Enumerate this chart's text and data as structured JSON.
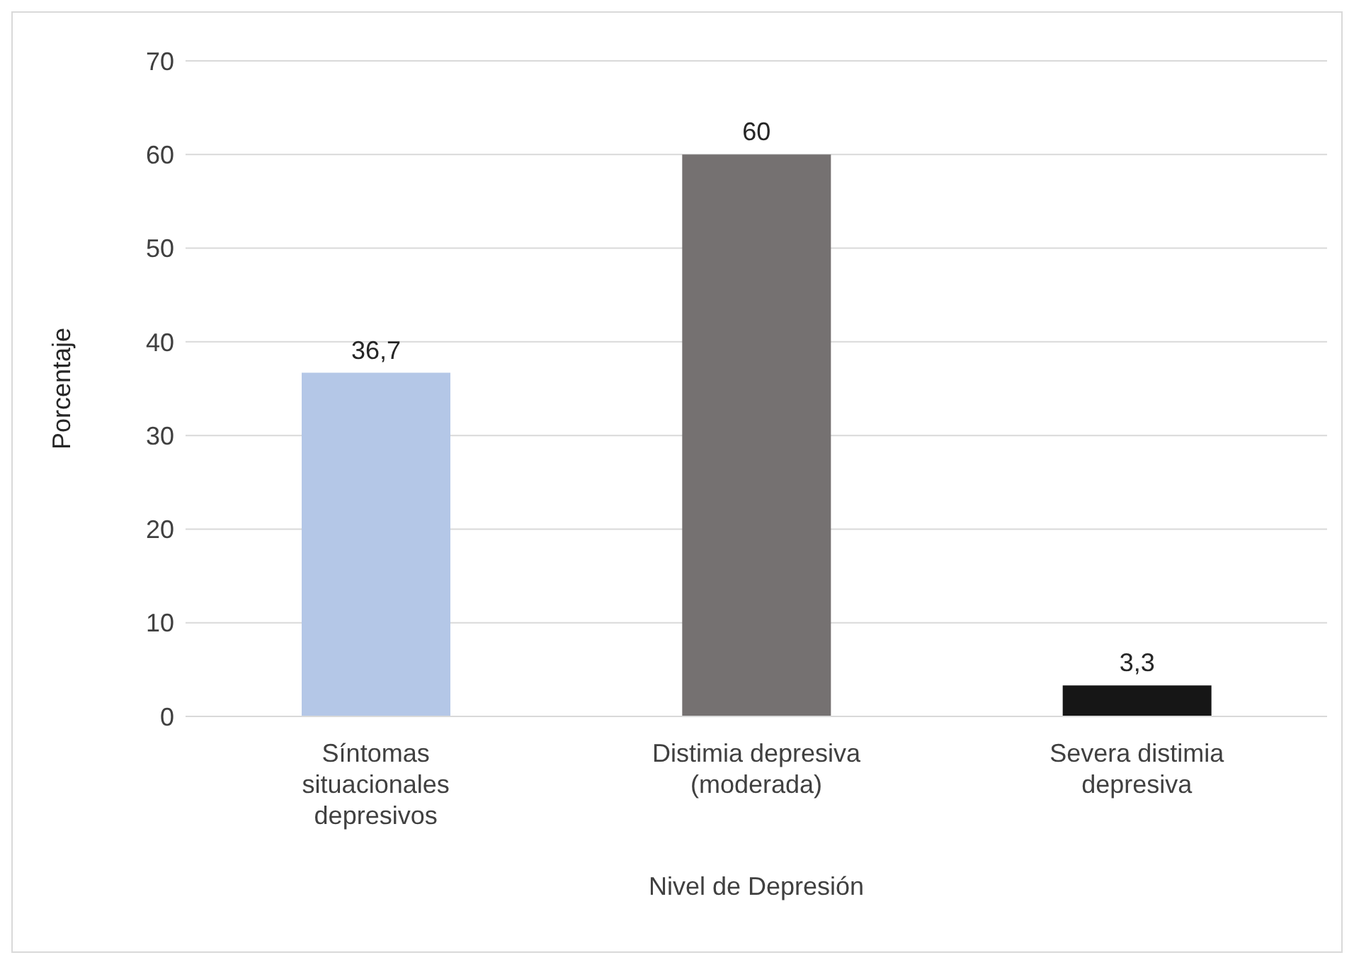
{
  "chart_data": {
    "type": "bar",
    "xlabel": "Nivel de Depresión",
    "ylabel": "Porcentaje",
    "categories": [
      "Síntomas situacionales depresivos",
      "Distimia depresiva (moderada)",
      "Severa distimia depresiva"
    ],
    "values": [
      36.7,
      60,
      3.3
    ],
    "colors": [
      "#b4c7e7",
      "#757171",
      "#161616"
    ],
    "value_labels": [
      "36,7",
      "60",
      "3,3"
    ],
    "ylim": [
      0,
      70
    ],
    "yticks": [
      0,
      10,
      20,
      30,
      40,
      50,
      60,
      70
    ],
    "grid": "y",
    "legend": false
  }
}
